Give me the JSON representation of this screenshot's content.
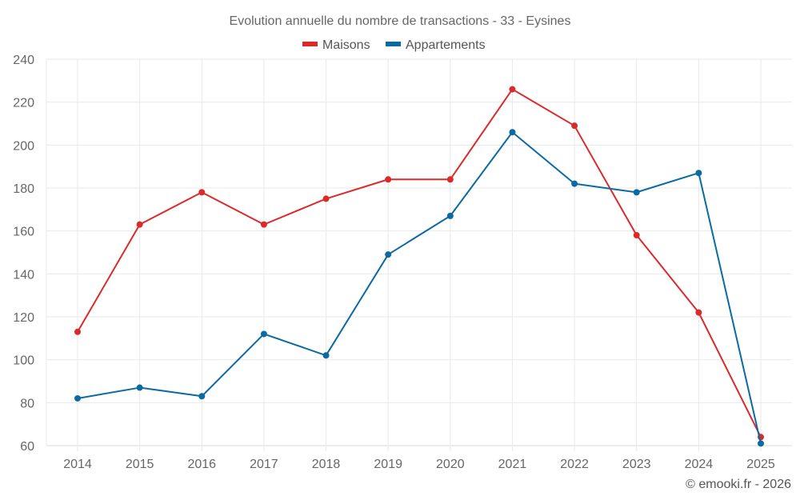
{
  "chart_data": {
    "type": "line",
    "title": "Evolution annuelle du nombre de transactions - 33 - Eysines",
    "xlabel": "",
    "ylabel": "",
    "categories": [
      "2014",
      "2015",
      "2016",
      "2017",
      "2018",
      "2019",
      "2020",
      "2021",
      "2022",
      "2023",
      "2024",
      "2025"
    ],
    "y_ticks": [
      "60",
      "80",
      "100",
      "120",
      "140",
      "160",
      "180",
      "200",
      "220",
      "240"
    ],
    "ylim": [
      60,
      240
    ],
    "grid": true,
    "legend_position": "top-center",
    "series": [
      {
        "name": "Maisons",
        "color": "#dc2a2a",
        "values": [
          113,
          163,
          178,
          163,
          175,
          184,
          184,
          226,
          209,
          158,
          122,
          64
        ]
      },
      {
        "name": "Appartements",
        "color": "#0a6aa1",
        "values": [
          82,
          87,
          83,
          112,
          102,
          149,
          167,
          206,
          182,
          178,
          187,
          61
        ]
      }
    ],
    "credit": "© emooki.fr - 2026"
  }
}
